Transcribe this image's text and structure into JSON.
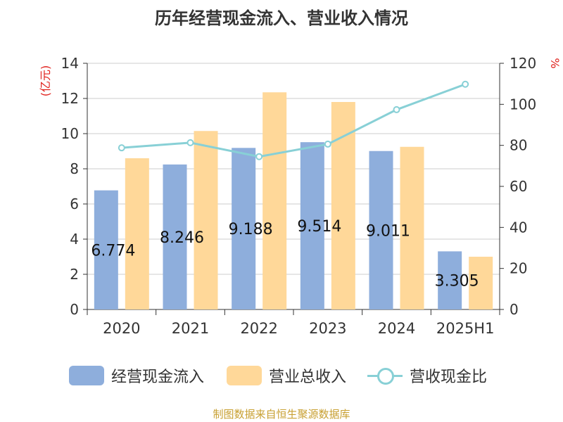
{
  "title": "历年经营现金流入、营业收入情况",
  "source": "制图数据来自恒生聚源数据库",
  "colors": {
    "cash_inflow": "#8eaedc",
    "revenue": "#ffd899",
    "ratio": "#88d0d6",
    "axis_label": "#e0201b",
    "text": "#333333",
    "grid": "#cccccc",
    "source": "#c8a032"
  },
  "chart_data": {
    "type": "bar",
    "title": "历年经营现金流入、营业收入情况",
    "categories": [
      "2020",
      "2021",
      "2022",
      "2023",
      "2024",
      "2025H1"
    ],
    "y_left": {
      "label": "(亿元)",
      "min": 0,
      "max": 14,
      "ticks": [
        0,
        2,
        4,
        6,
        8,
        10,
        12,
        14
      ]
    },
    "y_right": {
      "label": "%",
      "min": 0,
      "max": 120,
      "ticks": [
        0,
        20,
        40,
        60,
        80,
        100,
        120
      ]
    },
    "grid": true,
    "legend_position": "bottom",
    "series": [
      {
        "name": "经营现金流入",
        "type": "bar",
        "axis": "left",
        "values": [
          6.774,
          8.246,
          9.188,
          9.514,
          9.011,
          3.305
        ],
        "labels": [
          "6.774",
          "8.246",
          "9.188",
          "9.514",
          "9.011",
          "3.305"
        ]
      },
      {
        "name": "营业总收入",
        "type": "bar",
        "axis": "left",
        "values": [
          8.6,
          10.15,
          12.35,
          11.8,
          9.25,
          3.0
        ]
      },
      {
        "name": "营收现金比",
        "type": "line",
        "axis": "right",
        "values": [
          78.8,
          81.3,
          74.5,
          80.6,
          97.4,
          109.8
        ]
      }
    ]
  }
}
